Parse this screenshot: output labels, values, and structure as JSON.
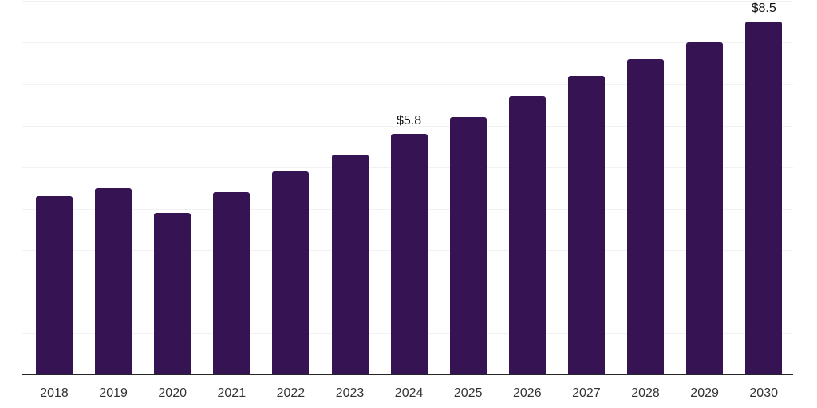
{
  "chart_data": {
    "type": "bar",
    "title": "",
    "xlabel": "",
    "ylabel": "",
    "categories": [
      "2018",
      "2019",
      "2020",
      "2021",
      "2022",
      "2023",
      "2024",
      "2025",
      "2026",
      "2027",
      "2028",
      "2029",
      "2030"
    ],
    "values": [
      4.3,
      4.5,
      3.9,
      4.4,
      4.9,
      5.3,
      5.8,
      6.2,
      6.7,
      7.2,
      7.6,
      8.0,
      8.5
    ],
    "value_labels": [
      "",
      "",
      "",
      "",
      "",
      "",
      "$5.8",
      "",
      "",
      "",
      "",
      "",
      "$8.5"
    ],
    "ylim": [
      0,
      9
    ],
    "gridline_step": 1,
    "grid": "horizontal",
    "legend": "none",
    "colors": {
      "bar": "#361352",
      "gridline": "#f2f2f2",
      "axis_line": "#262626",
      "tick_label": "#333333",
      "value_label": "#111111",
      "background": "#ffffff"
    }
  }
}
